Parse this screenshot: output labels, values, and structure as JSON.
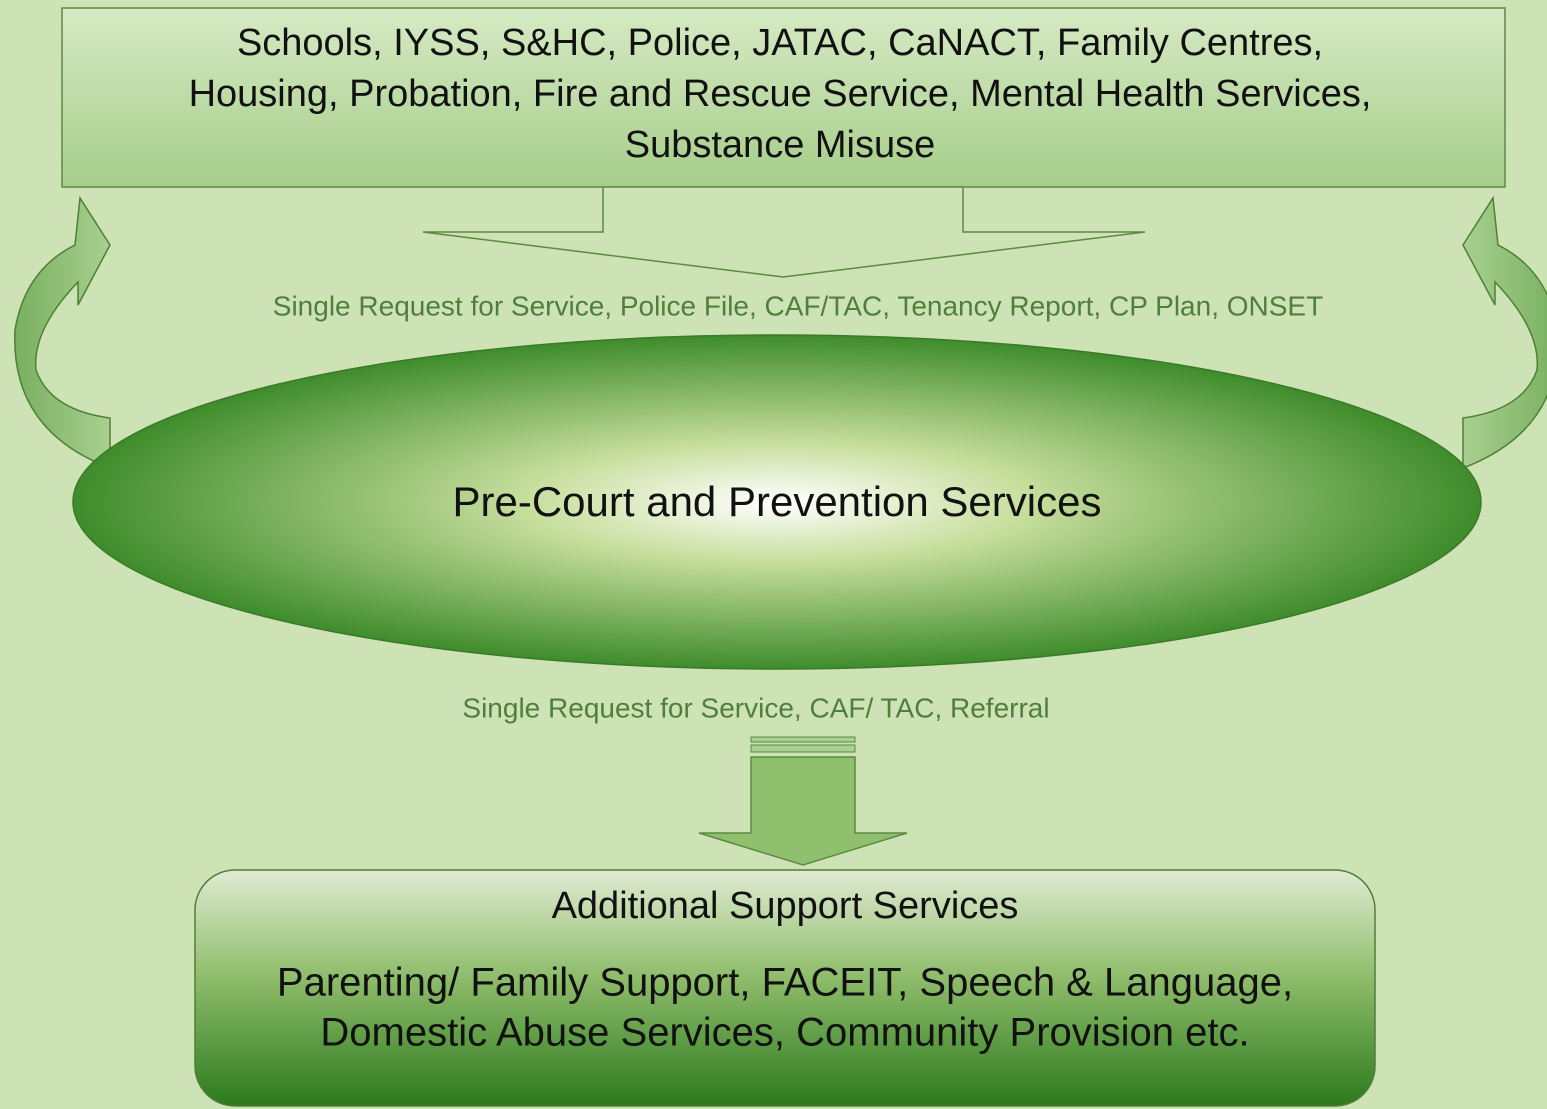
{
  "top_box": {
    "lines": [
      "Schools, IYSS, S&HC, Police, JATAC, CaNACT, Family Centres,",
      "Housing, Probation, Fire and Rescue Service, Mental Health Services,",
      "Substance Misuse"
    ]
  },
  "upper_label": "Single Request for Service, Police File, CAF/TAC, Tenancy Report, CP Plan, ONSET",
  "center": "Pre-Court and Prevention Services",
  "lower_label": "Single Request for Service, CAF/ TAC,  Referral",
  "bottom_box": {
    "title": "Additional Support Services",
    "lines": [
      "Parenting/ Family Support, FACEIT, Speech & Language,",
      "Domestic Abuse Services, Community Provision etc."
    ]
  }
}
